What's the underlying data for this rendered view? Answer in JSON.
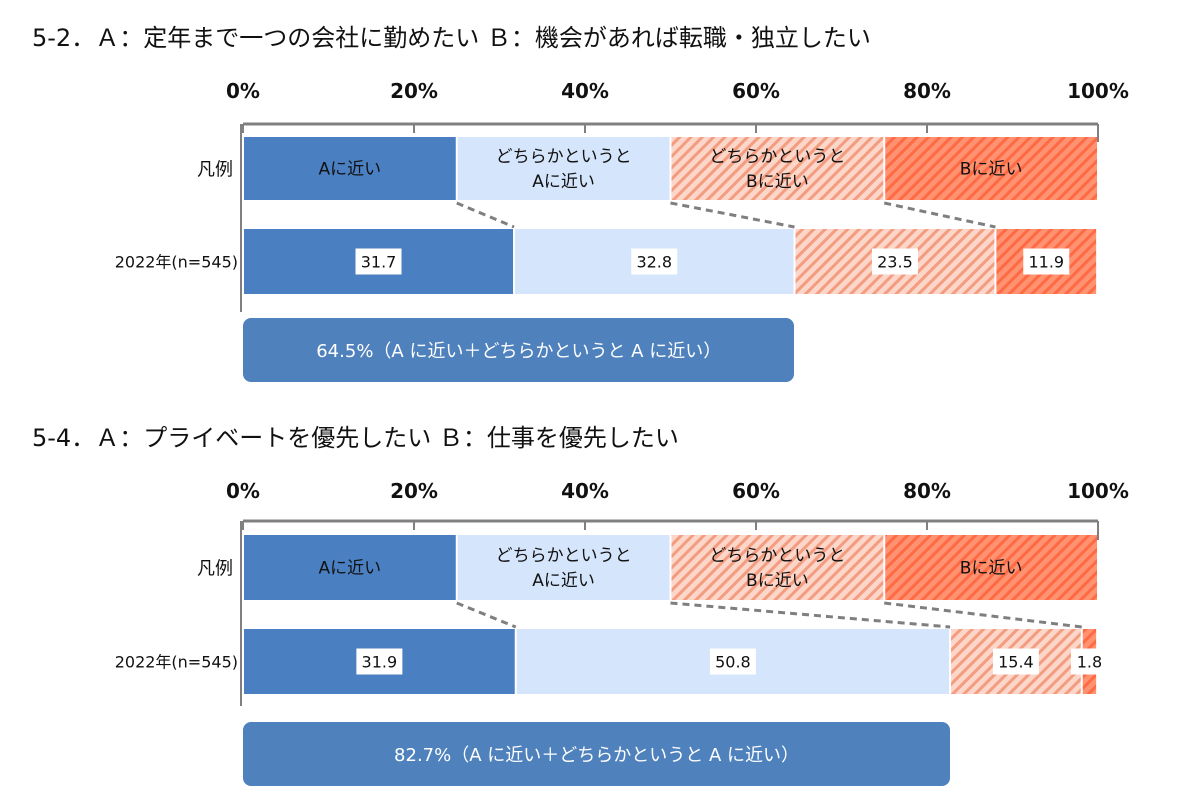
{
  "colors": {
    "a_near": "#4a7fc1",
    "somewhat_a": "#d5e5fb",
    "somewhat_b_base": "#fbd6c9",
    "somewhat_b_stripe": "#f39c80",
    "b_near_base": "#ff9270",
    "b_near_stripe": "#ff6a45",
    "summary_box": "#4f81bd",
    "frame": "#808080"
  },
  "chart_data": [
    {
      "type": "bar",
      "orientation": "horizontal",
      "stacked": true,
      "title": "5-2．Ａ：定年まで一つの会社に勤めたい Ｂ：機会があれば転職・独立したい",
      "xlim": [
        0,
        100
      ],
      "x_ticks": [
        "0%",
        "20%",
        "40%",
        "60%",
        "80%",
        "100%"
      ],
      "legend_row_label": "凡例",
      "legend_items": [
        {
          "lines": [
            "Aに近い"
          ],
          "value": 25
        },
        {
          "lines": [
            "どちらかというと",
            "Aに近い"
          ],
          "value": 25
        },
        {
          "lines": [
            "どちらかというと",
            "Bに近い"
          ],
          "value": 25
        },
        {
          "lines": [
            "Bに近い"
          ],
          "value": 25
        }
      ],
      "categories": [
        "2022年(n=545)"
      ],
      "series": [
        {
          "name": "Aに近い",
          "values": [
            31.7
          ]
        },
        {
          "name": "どちらかというとAに近い",
          "values": [
            32.8
          ]
        },
        {
          "name": "どちらかというとBに近い",
          "values": [
            23.5
          ]
        },
        {
          "name": "Bに近い",
          "values": [
            11.9
          ]
        }
      ],
      "data_labels": [
        "31.7",
        "32.8",
        "23.5",
        "11.9"
      ],
      "summary_value": 64.5,
      "summary_label": "64.5%（A に近い＋どちらかというと A に近い）"
    },
    {
      "type": "bar",
      "orientation": "horizontal",
      "stacked": true,
      "title": "5-4．Ａ：プライベートを優先したい Ｂ：仕事を優先したい",
      "xlim": [
        0,
        100
      ],
      "x_ticks": [
        "0%",
        "20%",
        "40%",
        "60%",
        "80%",
        "100%"
      ],
      "legend_row_label": "凡例",
      "legend_items": [
        {
          "lines": [
            "Aに近い"
          ],
          "value": 25
        },
        {
          "lines": [
            "どちらかというと",
            "Aに近い"
          ],
          "value": 25
        },
        {
          "lines": [
            "どちらかというと",
            "Bに近い"
          ],
          "value": 25
        },
        {
          "lines": [
            "Bに近い"
          ],
          "value": 25
        }
      ],
      "categories": [
        "2022年(n=545)"
      ],
      "series": [
        {
          "name": "Aに近い",
          "values": [
            31.9
          ]
        },
        {
          "name": "どちらかというとAに近い",
          "values": [
            50.8
          ]
        },
        {
          "name": "どちらかというとBに近い",
          "values": [
            15.4
          ]
        },
        {
          "name": "Bに近い",
          "values": [
            1.8
          ]
        }
      ],
      "data_labels": [
        "31.9",
        "50.8",
        "15.4",
        "1.8"
      ],
      "summary_value": 82.7,
      "summary_label": "82.7%（A に近い＋どちらかというと A に近い）"
    }
  ]
}
